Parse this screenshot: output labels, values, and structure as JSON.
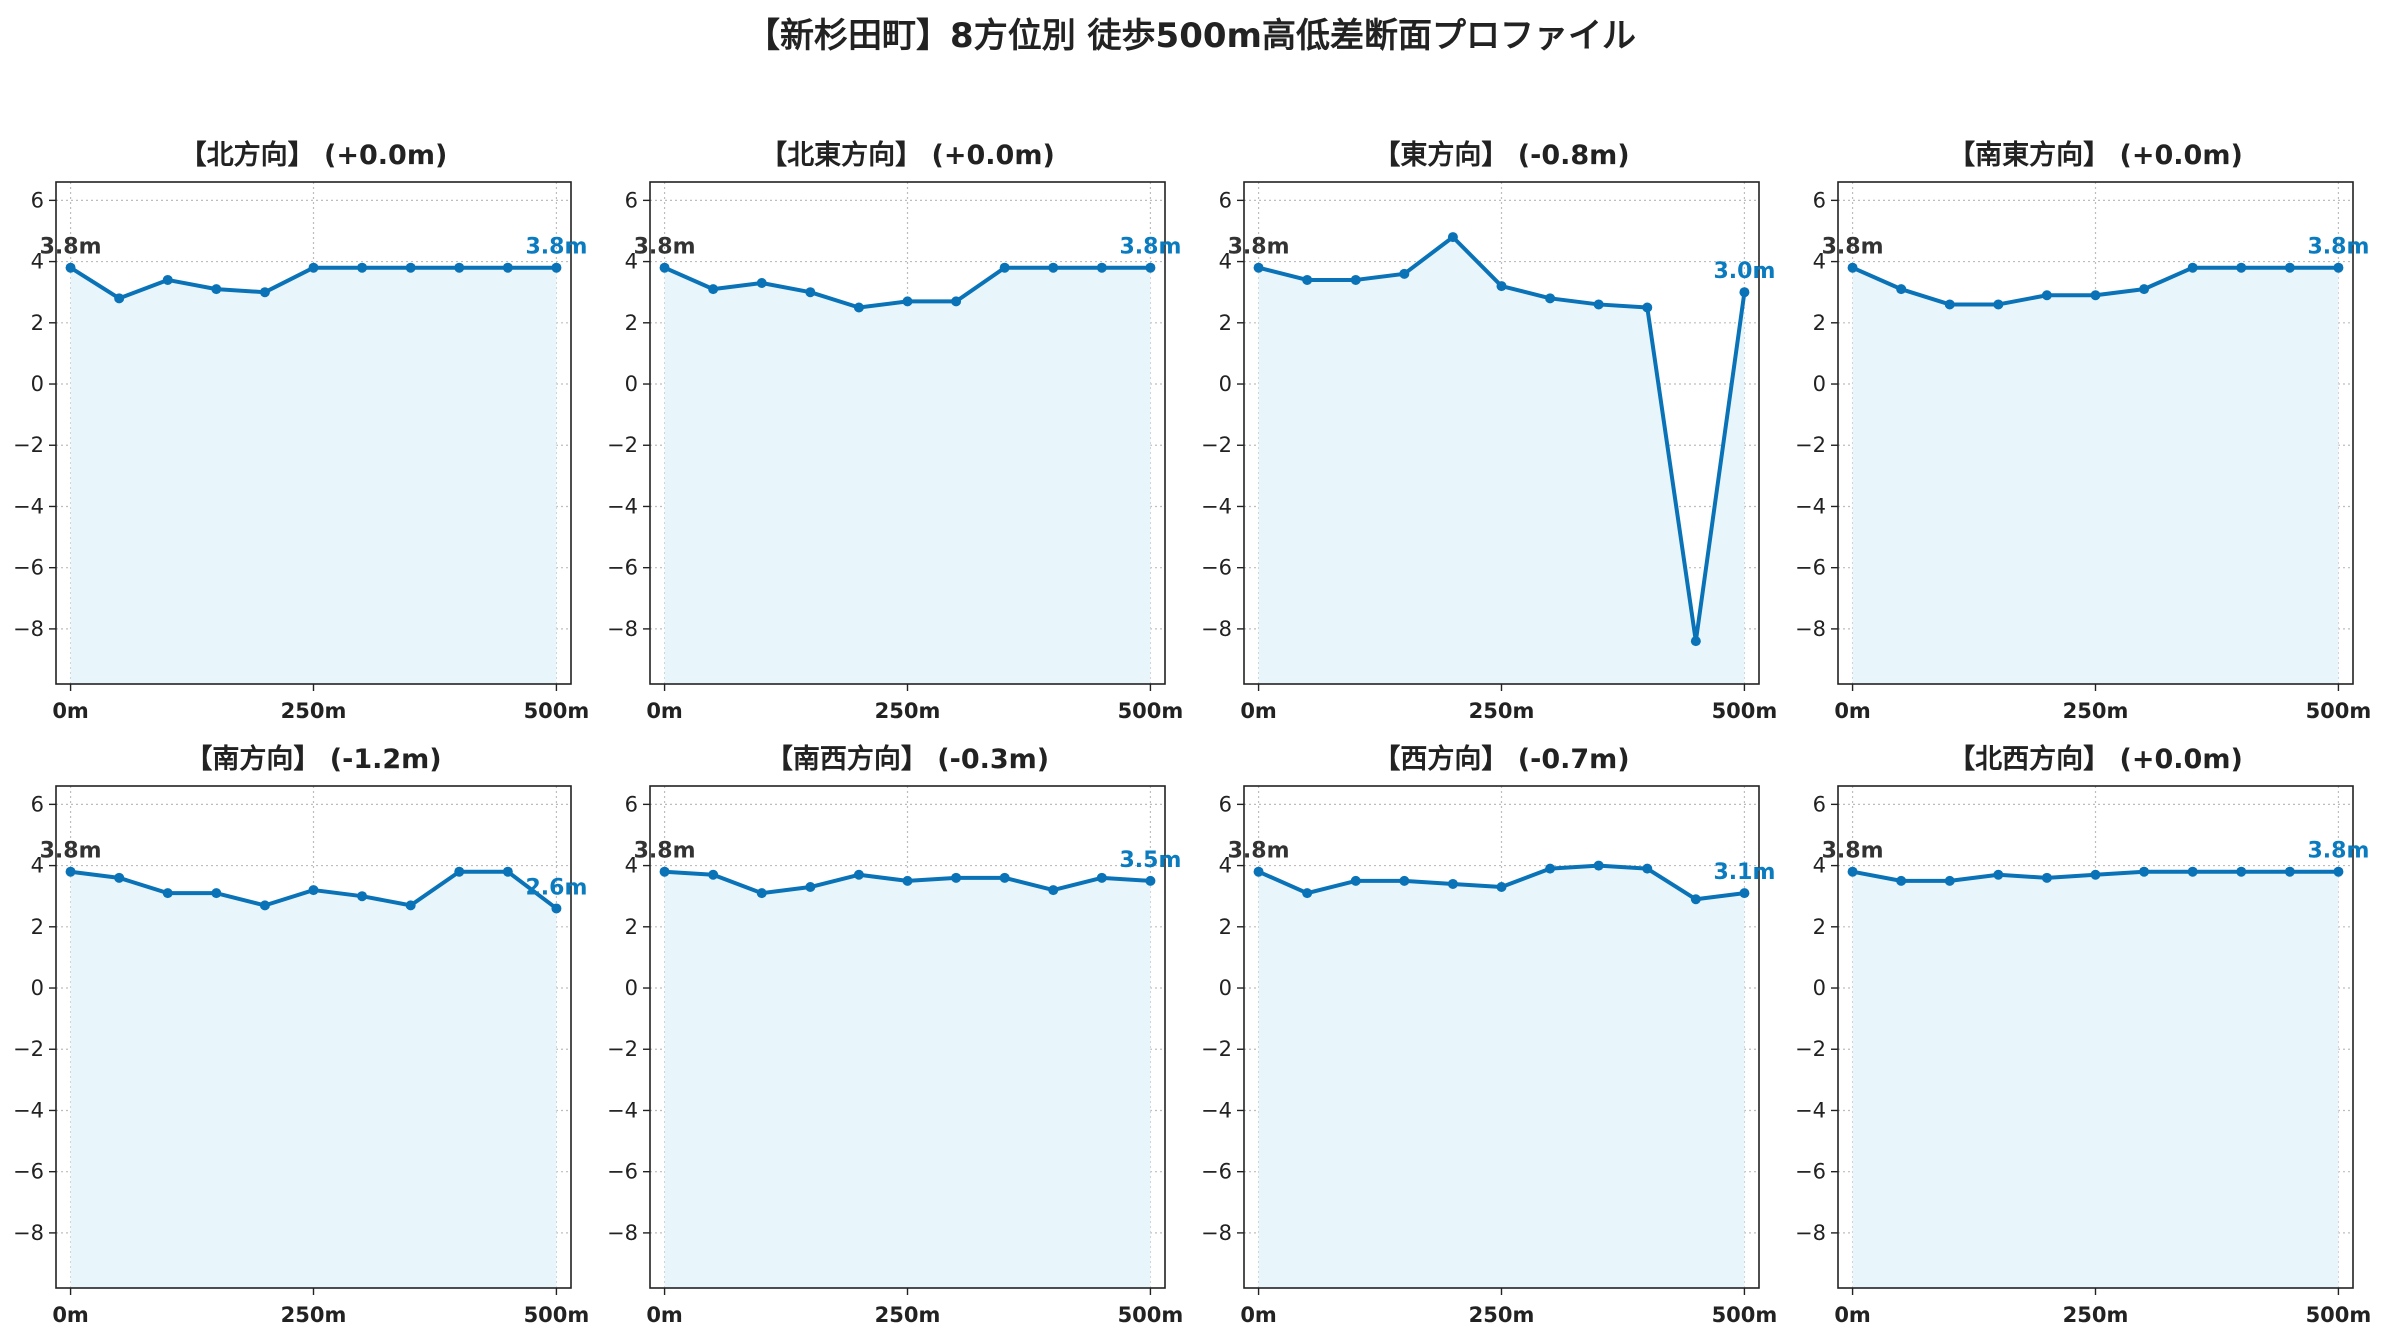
{
  "title": "【新杉田町】8方位別 徒歩500m高低差断面プロファイル",
  "colors": {
    "line": "#0a73b7",
    "fill": "#e8f6fc",
    "grid": "#bdbdbd",
    "end_label": "#0a7bbf"
  },
  "chart_data": [
    {
      "type": "area",
      "title": "【北方向】 (+0.0m)",
      "x": [
        0,
        50,
        100,
        150,
        200,
        250,
        300,
        350,
        400,
        450,
        500
      ],
      "y": [
        3.8,
        2.8,
        3.4,
        3.1,
        3.0,
        3.8,
        3.8,
        3.8,
        3.8,
        3.8,
        3.8
      ],
      "start_label": "3.8m",
      "end_label": "3.8m",
      "xticks": [
        "0m",
        "250m",
        "500m"
      ],
      "yticks": [
        6,
        4,
        2,
        0,
        -2,
        -4,
        -6,
        -8
      ],
      "xlim": [
        -15,
        515
      ],
      "ylim": [
        -9.8,
        6.6
      ],
      "grid": true
    },
    {
      "type": "area",
      "title": "【北東方向】 (+0.0m)",
      "x": [
        0,
        50,
        100,
        150,
        200,
        250,
        300,
        350,
        400,
        450,
        500
      ],
      "y": [
        3.8,
        3.1,
        3.3,
        3.0,
        2.5,
        2.7,
        2.7,
        3.8,
        3.8,
        3.8,
        3.8
      ],
      "start_label": "3.8m",
      "end_label": "3.8m",
      "xticks": [
        "0m",
        "250m",
        "500m"
      ],
      "yticks": [
        6,
        4,
        2,
        0,
        -2,
        -4,
        -6,
        -8
      ],
      "xlim": [
        -15,
        515
      ],
      "ylim": [
        -9.8,
        6.6
      ],
      "grid": true
    },
    {
      "type": "area",
      "title": "【東方向】 (-0.8m)",
      "x": [
        0,
        50,
        100,
        150,
        200,
        250,
        300,
        350,
        400,
        450,
        500
      ],
      "y": [
        3.8,
        3.4,
        3.4,
        3.6,
        4.8,
        3.2,
        2.8,
        2.6,
        2.5,
        -8.4,
        3.0
      ],
      "start_label": "3.8m",
      "end_label": "3.0m",
      "xticks": [
        "0m",
        "250m",
        "500m"
      ],
      "yticks": [
        6,
        4,
        2,
        0,
        -2,
        -4,
        -6,
        -8
      ],
      "xlim": [
        -15,
        515
      ],
      "ylim": [
        -9.8,
        6.6
      ],
      "grid": true
    },
    {
      "type": "area",
      "title": "【南東方向】 (+0.0m)",
      "x": [
        0,
        50,
        100,
        150,
        200,
        250,
        300,
        350,
        400,
        450,
        500
      ],
      "y": [
        3.8,
        3.1,
        2.6,
        2.6,
        2.9,
        2.9,
        3.1,
        3.8,
        3.8,
        3.8,
        3.8
      ],
      "start_label": "3.8m",
      "end_label": "3.8m",
      "xticks": [
        "0m",
        "250m",
        "500m"
      ],
      "yticks": [
        6,
        4,
        2,
        0,
        -2,
        -4,
        -6,
        -8
      ],
      "xlim": [
        -15,
        515
      ],
      "ylim": [
        -9.8,
        6.6
      ],
      "grid": true
    },
    {
      "type": "area",
      "title": "【南方向】 (-1.2m)",
      "x": [
        0,
        50,
        100,
        150,
        200,
        250,
        300,
        350,
        400,
        450,
        500
      ],
      "y": [
        3.8,
        3.6,
        3.1,
        3.1,
        2.7,
        3.2,
        3.0,
        2.7,
        3.8,
        3.8,
        2.6
      ],
      "start_label": "3.8m",
      "end_label": "2.6m",
      "xticks": [
        "0m",
        "250m",
        "500m"
      ],
      "yticks": [
        6,
        4,
        2,
        0,
        -2,
        -4,
        -6,
        -8
      ],
      "xlim": [
        -15,
        515
      ],
      "ylim": [
        -9.8,
        6.6
      ],
      "grid": true
    },
    {
      "type": "area",
      "title": "【南西方向】 (-0.3m)",
      "x": [
        0,
        50,
        100,
        150,
        200,
        250,
        300,
        350,
        400,
        450,
        500
      ],
      "y": [
        3.8,
        3.7,
        3.1,
        3.3,
        3.7,
        3.5,
        3.6,
        3.6,
        3.2,
        3.6,
        3.5
      ],
      "start_label": "3.8m",
      "end_label": "3.5m",
      "xticks": [
        "0m",
        "250m",
        "500m"
      ],
      "yticks": [
        6,
        4,
        2,
        0,
        -2,
        -4,
        -6,
        -8
      ],
      "xlim": [
        -15,
        515
      ],
      "ylim": [
        -9.8,
        6.6
      ],
      "grid": true
    },
    {
      "type": "area",
      "title": "【西方向】 (-0.7m)",
      "x": [
        0,
        50,
        100,
        150,
        200,
        250,
        300,
        350,
        400,
        450,
        500
      ],
      "y": [
        3.8,
        3.1,
        3.5,
        3.5,
        3.4,
        3.3,
        3.9,
        4.0,
        3.9,
        2.9,
        3.1
      ],
      "start_label": "3.8m",
      "end_label": "3.1m",
      "xticks": [
        "0m",
        "250m",
        "500m"
      ],
      "yticks": [
        6,
        4,
        2,
        0,
        -2,
        -4,
        -6,
        -8
      ],
      "xlim": [
        -15,
        515
      ],
      "ylim": [
        -9.8,
        6.6
      ],
      "grid": true
    },
    {
      "type": "area",
      "title": "【北西方向】 (+0.0m)",
      "x": [
        0,
        50,
        100,
        150,
        200,
        250,
        300,
        350,
        400,
        450,
        500
      ],
      "y": [
        3.8,
        3.5,
        3.5,
        3.7,
        3.6,
        3.7,
        3.8,
        3.8,
        3.8,
        3.8,
        3.8
      ],
      "start_label": "3.8m",
      "end_label": "3.8m",
      "xticks": [
        "0m",
        "250m",
        "500m"
      ],
      "yticks": [
        6,
        4,
        2,
        0,
        -2,
        -4,
        -6,
        -8
      ],
      "xlim": [
        -15,
        515
      ],
      "ylim": [
        -9.8,
        6.6
      ],
      "grid": true
    }
  ]
}
